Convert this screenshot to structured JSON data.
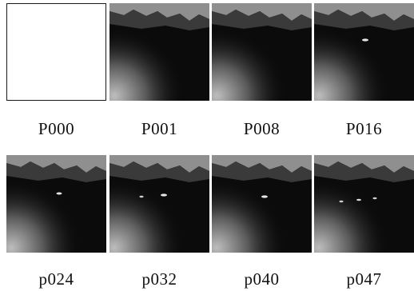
{
  "frames": [
    {
      "label": "P000",
      "blank": true,
      "spots": []
    },
    {
      "label": "P001",
      "blank": false,
      "spots": []
    },
    {
      "label": "P008",
      "blank": false,
      "spots": []
    },
    {
      "label": "P016",
      "blank": false,
      "spots": [
        "a"
      ]
    },
    {
      "label": "p024",
      "blank": false,
      "spots": [
        "b"
      ]
    },
    {
      "label": "p032",
      "blank": false,
      "spots": [
        "c",
        "d"
      ]
    },
    {
      "label": "p040",
      "blank": false,
      "spots": [
        "e"
      ]
    },
    {
      "label": "p047",
      "blank": false,
      "spots": [
        "f",
        "g",
        "h"
      ]
    }
  ]
}
